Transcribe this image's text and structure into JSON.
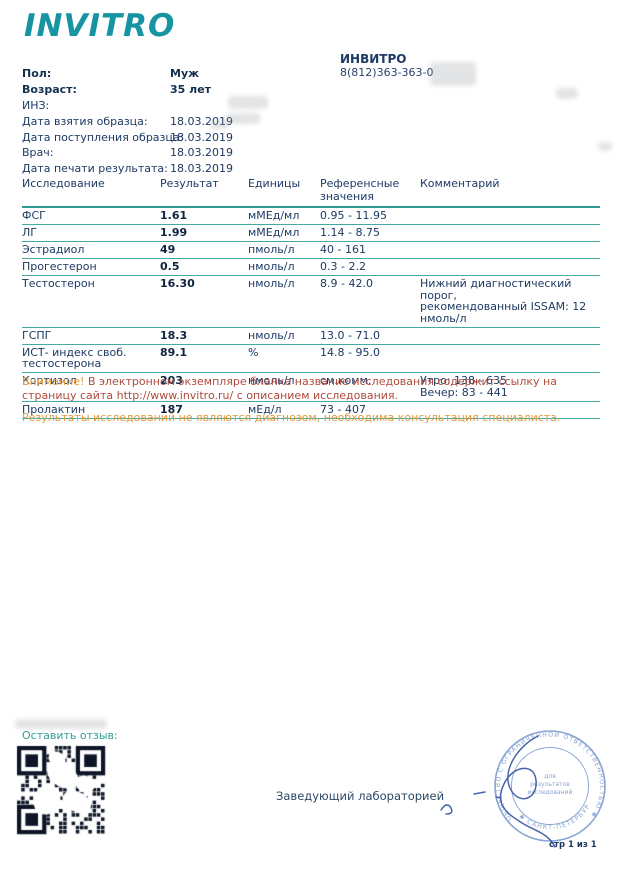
{
  "logo": {
    "text": "INVITRO"
  },
  "clinic": {
    "name": "ИНВИТРО",
    "phone": "8(812)363-363-0"
  },
  "patient": {
    "rows": [
      {
        "label": "Пол:",
        "value": "Муж",
        "bold": true
      },
      {
        "label": "Возраст:",
        "value": "35 лет",
        "bold": true
      },
      {
        "label": "ИНЗ:",
        "value": "",
        "bold": false
      },
      {
        "label": "Дата взятия образца:",
        "value": "18.03.2019",
        "bold": false
      },
      {
        "label": "Дата поступления образца:",
        "value": "18.03.2019",
        "bold": false
      },
      {
        "label": "Врач:",
        "value": "18.03.2019",
        "bold": false
      },
      {
        "label": "Дата печати результата:",
        "value": "18.03.2019",
        "bold": false
      }
    ]
  },
  "results_table": {
    "headers": [
      "Исследование",
      "Результат",
      "Единицы",
      "Референсные значения",
      "Комментарий"
    ],
    "rows": [
      {
        "test": "ФСГ",
        "result": "1.61",
        "units": "мМЕд/мл",
        "reference": "0.95 - 11.95",
        "comment": ""
      },
      {
        "test": "ЛГ",
        "result": "1.99",
        "units": "мМЕд/мл",
        "reference": "1.14 - 8.75",
        "comment": ""
      },
      {
        "test": "Эстрадиол",
        "result": "49",
        "units": "пмоль/л",
        "reference": "40 - 161",
        "comment": ""
      },
      {
        "test": "Прогестерон",
        "result": "0.5",
        "units": "нмоль/л",
        "reference": "0.3 - 2.2",
        "comment": ""
      },
      {
        "test": "Тестостерон",
        "result": "16.30",
        "units": "нмоль/л",
        "reference": "8.9 - 42.0",
        "comment": "Нижний диагностический порог,\nрекомендованный ISSAM: 12 нмоль/л"
      },
      {
        "test": "ГСПГ",
        "result": "18.3",
        "units": "нмоль/л",
        "reference": "13.0 - 71.0",
        "comment": ""
      },
      {
        "test": "ИСТ- индекс своб. тестостерона",
        "result": "89.1",
        "units": "%",
        "reference": "14.8 - 95.0",
        "comment": ""
      },
      {
        "test": "Кортизол",
        "result": "203",
        "units": "нмоль/л",
        "reference": "см.комм.",
        "comment": "Утро: 138 - 635\nВечер: 83 - 441"
      },
      {
        "test": "Пролактин",
        "result": "187",
        "units": "мЕд/л",
        "reference": "73 - 407",
        "comment": ""
      }
    ]
  },
  "notices": {
    "attention_label": "Внимание!",
    "attention_text": " В электронном экземпляре бланка название исследования содержит ссылку на страницу сайта http://www.invitro.ru/ с описанием исследования.",
    "disclaimer": "Результаты исследований не являются диагнозом, необходима консультация специалиста."
  },
  "footer": {
    "feedback_label": "Оставить отзыв:",
    "signature_label": "Заведующий лабораторией",
    "page_number": "стр 1 из 1"
  },
  "stamp": {
    "ring_text": "ОБЩЕСТВО С ОГРАНИЧЕННОЙ ОТВЕТСТВЕННОСТЬЮ ✱ ОГРН 10378",
    "bottom_text": "✱ САНКТ-ПЕТЕРБУРГ ✱",
    "inner_line1": "для",
    "inner_line2": "результатов",
    "inner_line3": "исследований"
  },
  "colors": {
    "logo_teal": "#1794a1",
    "navy_text": "#1d3a63",
    "table_line_teal": "#43a9a1",
    "orange": "#e29a3c",
    "brick_red": "#ae4a3c",
    "feedback_teal": "#2f9e94",
    "stamp_blue": "#8aa5d3"
  }
}
